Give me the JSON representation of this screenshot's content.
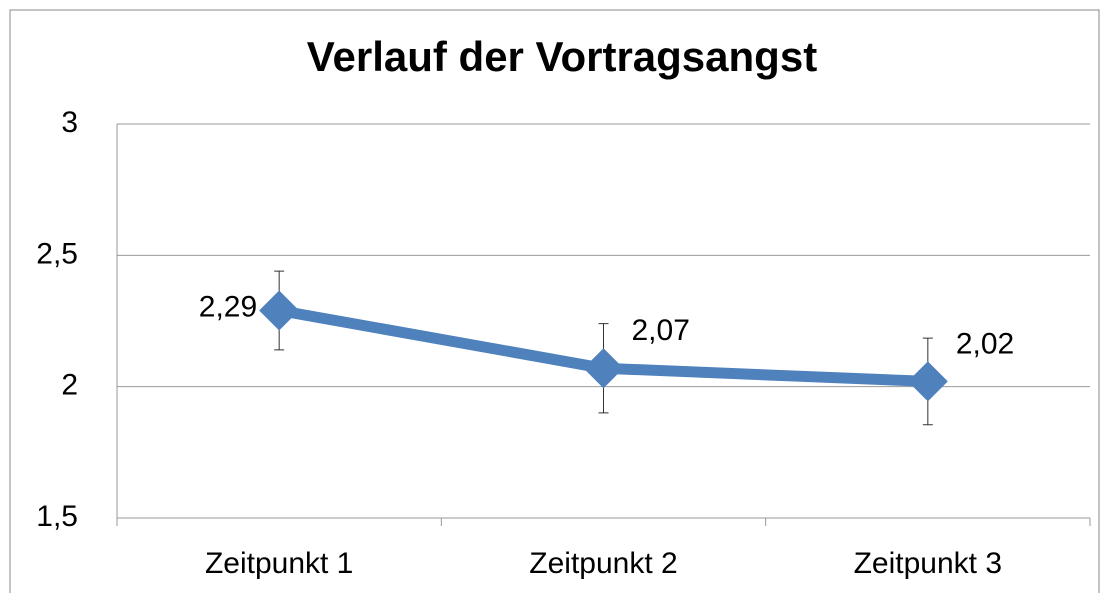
{
  "chart_data": {
    "type": "line",
    "title": "Verlauf der Vortragsangst",
    "categories": [
      "Zeitpunkt 1",
      "Zeitpunkt 2",
      "Zeitpunkt 3"
    ],
    "series": [
      {
        "color": "#4f81bd",
        "values": [
          2.29,
          2.07,
          2.02
        ],
        "value_labels": [
          "2,29",
          "2,07",
          "2,02"
        ],
        "errors": [
          0.15,
          0.17,
          0.165
        ]
      }
    ],
    "ylim": [
      1.5,
      3
    ],
    "yticks": [
      {
        "value": 1.5,
        "label": "1,5"
      },
      2,
      {
        "value": 2.5,
        "label": "2,5"
      },
      3
    ],
    "grid": true
  }
}
